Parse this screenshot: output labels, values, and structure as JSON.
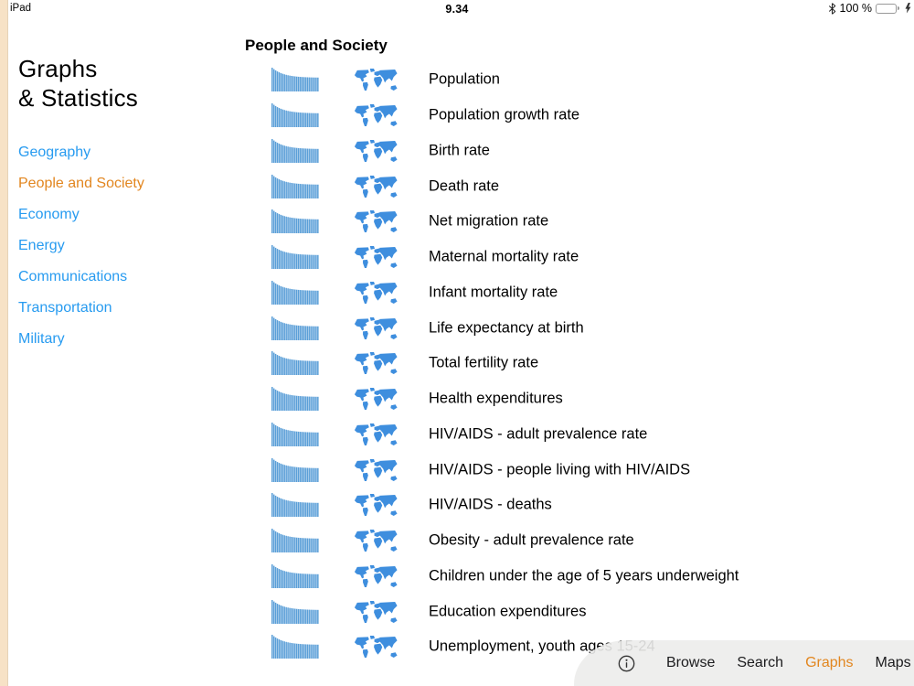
{
  "status_bar": {
    "device": "iPad",
    "time": "9.34",
    "battery_percent": "100 %",
    "icons": [
      "bluetooth-icon",
      "battery-icon",
      "charging-bolt-icon"
    ]
  },
  "sidebar": {
    "title_line1": "Graphs",
    "title_line2": "& Statistics",
    "items": [
      {
        "label": "Geography",
        "selected": false
      },
      {
        "label": "People and Society",
        "selected": true
      },
      {
        "label": "Economy",
        "selected": false
      },
      {
        "label": "Energy",
        "selected": false
      },
      {
        "label": "Communications",
        "selected": false
      },
      {
        "label": "Transportation",
        "selected": false
      },
      {
        "label": "Military",
        "selected": false
      }
    ]
  },
  "main": {
    "header": "People and Society",
    "row_icons": [
      "bar-chart-icon",
      "world-map-icon"
    ],
    "items": [
      "Population",
      "Population growth rate",
      "Birth rate",
      "Death rate",
      "Net migration rate",
      "Maternal mortality rate",
      "Infant mortality rate",
      "Life expectancy at birth",
      "Total fertility rate",
      "Health expenditures",
      "HIV/AIDS - adult prevalence rate",
      "HIV/AIDS - people living with HIV/AIDS",
      "HIV/AIDS - deaths",
      "Obesity - adult prevalence rate",
      "Children under the age of 5 years underweight",
      "Education expenditures",
      "Unemployment, youth ages 15-24"
    ]
  },
  "toolbar": {
    "info_icon": "info-icon",
    "items": [
      "Browse",
      "Search",
      "Graphs",
      "Maps"
    ],
    "active": "Graphs"
  },
  "colors": {
    "link_blue": "#279bf0",
    "selected_orange": "#e2861f",
    "chart_bar_blue": "#5b9fd8",
    "map_blue": "#3e8ede",
    "battery_green": "#57d763",
    "left_stripe": "#f7e2c6",
    "toolbar_bg": "#ececeb"
  }
}
